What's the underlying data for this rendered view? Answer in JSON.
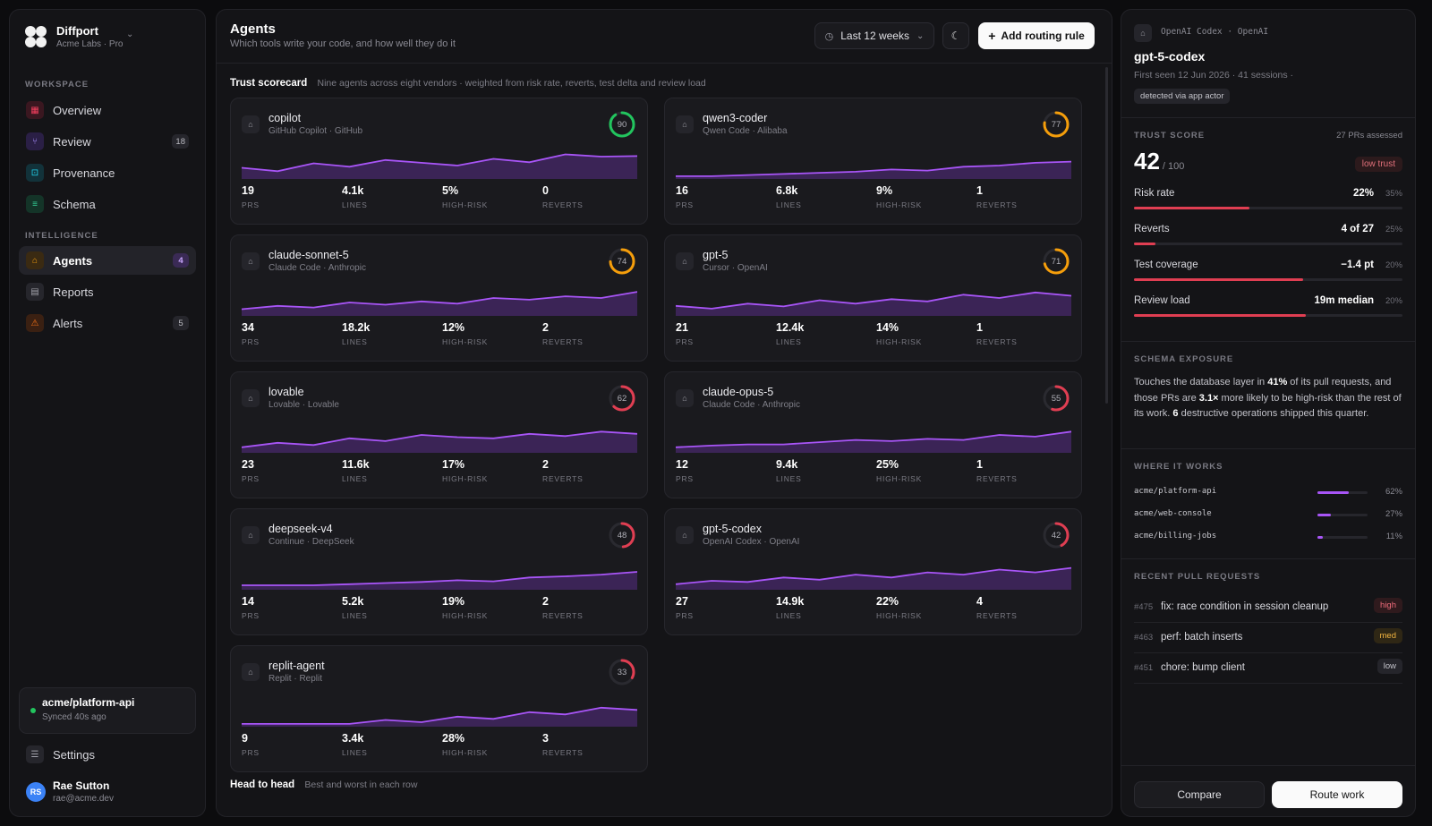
{
  "brand": {
    "name": "Diffport",
    "org": "Acme Labs · Pro"
  },
  "nav": {
    "workspace_label": "WORKSPACE",
    "intelligence_label": "INTELLIGENCE",
    "workspace": [
      {
        "label": "Overview",
        "icon": "grid-icon",
        "color": "#f43f5e",
        "bg": "#3a1720",
        "glyph": "▦"
      },
      {
        "label": "Review",
        "icon": "git-pull-icon",
        "color": "#a78bfa",
        "bg": "#2a1f45",
        "glyph": "⑂",
        "badge": "18"
      },
      {
        "label": "Provenance",
        "icon": "scan-icon",
        "color": "#22d3ee",
        "bg": "#12323a",
        "glyph": "⊡"
      },
      {
        "label": "Schema",
        "icon": "database-icon",
        "color": "#34d399",
        "bg": "#143428",
        "glyph": "≡"
      }
    ],
    "intelligence": [
      {
        "label": "Agents",
        "icon": "bot-icon",
        "color": "#f59e0b",
        "bg": "#3a2a12",
        "glyph": "⌂",
        "badge": "4"
      },
      {
        "label": "Reports",
        "icon": "file-icon",
        "color": "#a1a1aa",
        "bg": "#26262c",
        "glyph": "▤"
      },
      {
        "label": "Alerts",
        "icon": "warning-icon",
        "color": "#f97316",
        "bg": "#3a2012",
        "glyph": "⚠",
        "badge": "5"
      }
    ]
  },
  "repo": {
    "name": "acme/platform-api",
    "status": "Synced 40s ago"
  },
  "settings": {
    "label": "Settings"
  },
  "user": {
    "initials": "RS",
    "name": "Rae Sutton",
    "email": "rae@acme.dev"
  },
  "header": {
    "title": "Agents",
    "subtitle": "Which tools write your code, and how well they do it",
    "range": "Last 12 weeks",
    "add_label": "Add routing rule"
  },
  "scorecard": {
    "title": "Trust scorecard",
    "subtitle": "Nine agents across eight vendors · weighted from risk rate, reverts, test delta and review load",
    "stat_labels": {
      "prs": "PRS",
      "lines": "LINES",
      "risk": "HIGH-RISK",
      "reverts": "REVERTS"
    },
    "agents": [
      {
        "name": "copilot",
        "sub": "GitHub Copilot · GitHub",
        "score": 90,
        "prs": "19",
        "lines": "4.1k",
        "risk": "5%",
        "reverts": "0",
        "trend": [
          20,
          14,
          28,
          22,
          34,
          29,
          24,
          36,
          30,
          44,
          40,
          41
        ]
      },
      {
        "name": "qwen3-coder",
        "sub": "Qwen Code · Alibaba",
        "score": 77,
        "prs": "16",
        "lines": "6.8k",
        "risk": "9%",
        "reverts": "1",
        "trend": [
          5,
          5,
          7,
          9,
          11,
          13,
          17,
          15,
          22,
          24,
          29,
          31
        ]
      },
      {
        "name": "claude-sonnet-5",
        "sub": "Claude Code · Anthropic",
        "score": 74,
        "prs": "34",
        "lines": "18.2k",
        "risk": "12%",
        "reverts": "2",
        "trend": [
          12,
          18,
          15,
          24,
          20,
          26,
          22,
          32,
          29,
          35,
          32,
          43
        ]
      },
      {
        "name": "gpt-5",
        "sub": "Cursor · OpenAI",
        "score": 71,
        "prs": "21",
        "lines": "12.4k",
        "risk": "14%",
        "reverts": "1",
        "trend": [
          18,
          13,
          22,
          17,
          28,
          22,
          30,
          26,
          38,
          32,
          42,
          36
        ]
      },
      {
        "name": "lovable",
        "sub": "Lovable · Lovable",
        "score": 62,
        "prs": "23",
        "lines": "11.6k",
        "risk": "17%",
        "reverts": "2",
        "trend": [
          10,
          18,
          14,
          26,
          21,
          32,
          28,
          26,
          34,
          30,
          38,
          34
        ]
      },
      {
        "name": "claude-opus-5",
        "sub": "Claude Code · Anthropic",
        "score": 55,
        "prs": "12",
        "lines": "9.4k",
        "risk": "25%",
        "reverts": "1",
        "trend": [
          10,
          13,
          15,
          15,
          19,
          23,
          21,
          25,
          23,
          32,
          29,
          38
        ]
      },
      {
        "name": "deepseek-v4",
        "sub": "Continue · DeepSeek",
        "score": 48,
        "prs": "14",
        "lines": "5.2k",
        "risk": "19%",
        "reverts": "2",
        "trend": [
          8,
          8,
          8,
          10,
          12,
          14,
          17,
          15,
          22,
          24,
          27,
          32
        ]
      },
      {
        "name": "gpt-5-codex",
        "sub": "OpenAI Codex · OpenAI",
        "score": 42,
        "prs": "27",
        "lines": "14.9k",
        "risk": "22%",
        "reverts": "4",
        "trend": [
          10,
          16,
          14,
          22,
          18,
          27,
          22,
          31,
          27,
          36,
          31,
          39
        ]
      },
      {
        "name": "replit-agent",
        "sub": "Replit · Replit",
        "score": 33,
        "prs": "9",
        "lines": "3.4k",
        "risk": "28%",
        "reverts": "3",
        "trend": [
          5,
          5,
          5,
          5,
          12,
          8,
          18,
          14,
          26,
          22,
          34,
          30
        ]
      }
    ]
  },
  "head_to_head": {
    "title": "Head to head",
    "subtitle": "Best and worst in each row"
  },
  "detail": {
    "vendor": "OpenAI Codex · OpenAI",
    "name": "gpt-5-codex",
    "meta": "First seen 12 Jun 2026 · 41 sessions ·",
    "tag": "detected via app actor",
    "trust_label": "TRUST SCORE",
    "assessed": "27 PRs assessed",
    "score": "42",
    "score_max": "/ 100",
    "trust_tag": "low trust",
    "metrics": [
      {
        "name": "Risk rate",
        "value": "22%",
        "weight": "35%",
        "fill": 0.43
      },
      {
        "name": "Reverts",
        "value": "4 of 27",
        "weight": "25%",
        "fill": 0.08
      },
      {
        "name": "Test coverage",
        "value": "−1.4 pt",
        "weight": "20%",
        "fill": 0.63
      },
      {
        "name": "Review load",
        "value": "19m median",
        "weight": "20%",
        "fill": 0.64
      }
    ],
    "schema_label": "SCHEMA EXPOSURE",
    "schema_text": {
      "a": "Touches the database layer in ",
      "b": "41%",
      "c": " of its pull requests, and those PRs are ",
      "d": "3.1×",
      "e": " more likely to be high-risk than the rest of its work. ",
      "f": "6",
      "g": " destructive operations shipped this quarter."
    },
    "where_label": "WHERE IT WORKS",
    "repos": [
      {
        "name": "acme/platform-api",
        "pct": "62%",
        "fill": 0.62
      },
      {
        "name": "acme/web-console",
        "pct": "27%",
        "fill": 0.27
      },
      {
        "name": "acme/billing-jobs",
        "pct": "11%",
        "fill": 0.11
      }
    ],
    "prs_label": "RECENT PULL REQUESTS",
    "prs": [
      {
        "id": "#475",
        "title": "fix: race condition in session cleanup",
        "level": "high"
      },
      {
        "id": "#463",
        "title": "perf: batch inserts",
        "level": "med"
      },
      {
        "id": "#451",
        "title": "chore: bump client",
        "level": "low"
      }
    ],
    "compare_label": "Compare",
    "route_label": "Route work"
  }
}
